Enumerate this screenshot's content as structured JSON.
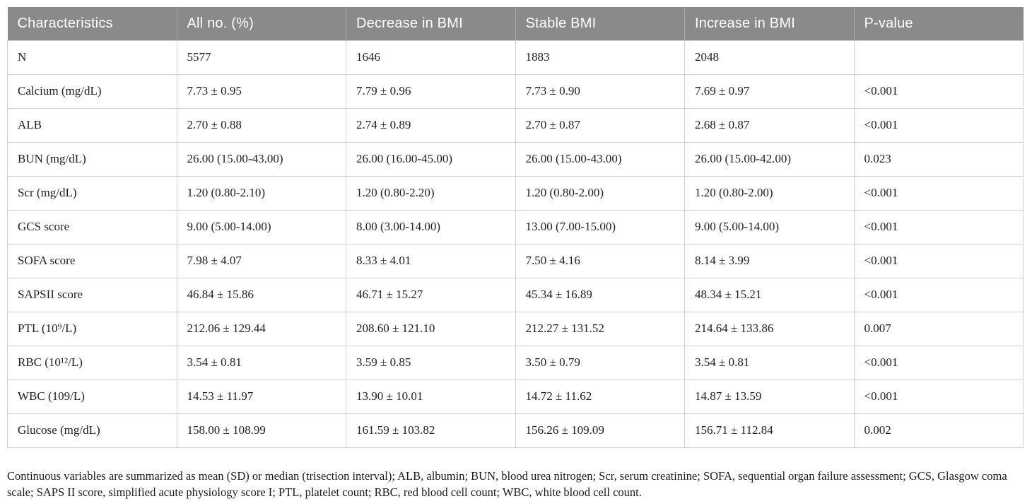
{
  "table": {
    "columns": [
      "Characteristics",
      "All no. (%)",
      "Decrease in BMI",
      "Stable BMI",
      "Increase in BMI",
      "P-value"
    ],
    "rows": [
      {
        "label": "N",
        "cells": [
          "5577",
          "1646",
          "1883",
          "2048",
          ""
        ]
      },
      {
        "label": "Calcium (mg/dL)",
        "cells": [
          "7.73 ± 0.95",
          "7.79 ± 0.96",
          "7.73 ± 0.90",
          "7.69 ± 0.97",
          "<0.001"
        ]
      },
      {
        "label": "ALB",
        "cells": [
          "2.70 ± 0.88",
          "2.74 ± 0.89",
          "2.70 ± 0.87",
          "2.68 ± 0.87",
          "<0.001"
        ]
      },
      {
        "label": "BUN (mg/dL)",
        "cells": [
          "26.00 (15.00-43.00)",
          "26.00 (16.00-45.00)",
          "26.00 (15.00-43.00)",
          "26.00 (15.00-42.00)",
          "0.023"
        ]
      },
      {
        "label": "Scr (mg/dL)",
        "cells": [
          "1.20 (0.80-2.10)",
          "1.20 (0.80-2.20)",
          "1.20 (0.80-2.00)",
          "1.20 (0.80-2.00)",
          "<0.001"
        ]
      },
      {
        "label": "GCS score",
        "cells": [
          "9.00 (5.00-14.00)",
          "8.00 (3.00-14.00)",
          "13.00 (7.00-15.00)",
          "9.00 (5.00-14.00)",
          "<0.001"
        ]
      },
      {
        "label": "SOFA score",
        "cells": [
          "7.98 ± 4.07",
          "8.33 ± 4.01",
          "7.50 ± 4.16",
          "8.14 ± 3.99",
          "<0.001"
        ]
      },
      {
        "label": "SAPSII score",
        "cells": [
          "46.84 ± 15.86",
          "46.71 ± 15.27",
          "45.34 ± 16.89",
          "48.34 ± 15.21",
          "<0.001"
        ]
      },
      {
        "label": "PTL (10⁹/L)",
        "cells": [
          "212.06 ± 129.44",
          "208.60 ± 121.10",
          "212.27 ± 131.52",
          "214.64 ± 133.86",
          "0.007"
        ]
      },
      {
        "label": "RBC (10¹²/L)",
        "cells": [
          "3.54 ± 0.81",
          "3.59 ± 0.85",
          "3.50 ± 0.79",
          "3.54 ± 0.81",
          "<0.001"
        ]
      },
      {
        "label": "WBC (109/L)",
        "cells": [
          "14.53 ± 11.97",
          "13.90 ± 10.01",
          "14.72 ± 11.62",
          "14.87 ± 13.59",
          "<0.001"
        ]
      },
      {
        "label": "Glucose (mg/dL)",
        "cells": [
          "158.00 ± 108.99",
          "161.59 ± 103.82",
          "156.26 ± 109.09",
          "156.71 ± 112.84",
          "0.002"
        ]
      }
    ]
  },
  "footnote": "Continuous variables are summarized as mean (SD) or median (trisection interval); ALB, albumin; BUN, blood urea nitrogen; Scr, serum creatinine; SOFA, sequential organ failure assessment; GCS, Glasgow coma scale; SAPS II score, simplified acute physiology score I; PTL, platelet count; RBC, red blood cell count; WBC, white blood cell count.",
  "colors": {
    "header_background": "#8a8a8a",
    "header_text": "#ffffff",
    "cell_border": "#cfcfcf",
    "cell_text": "#212121"
  }
}
